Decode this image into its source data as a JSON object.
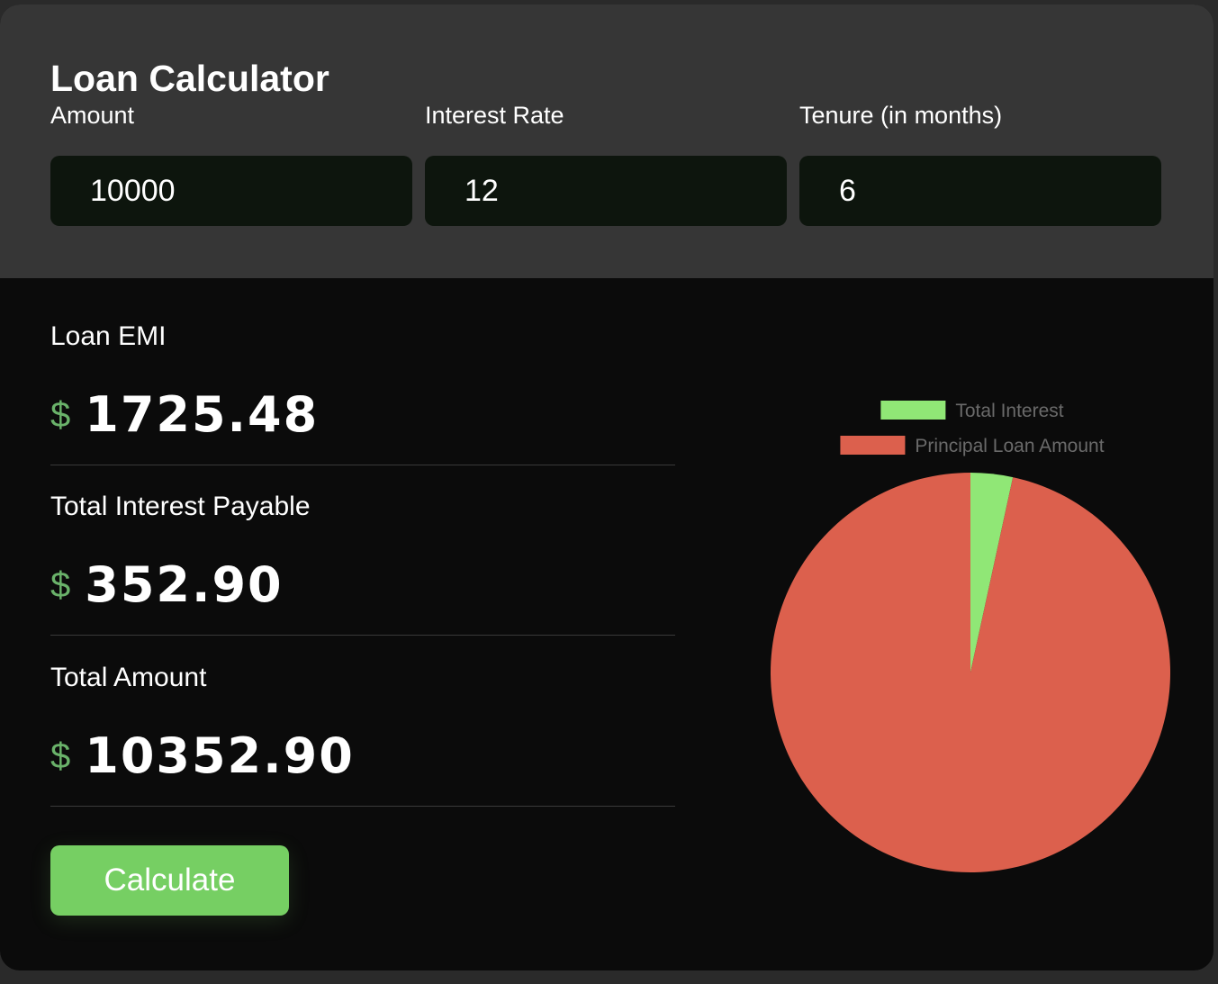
{
  "header": {
    "title": "Loan Calculator"
  },
  "inputs": {
    "amount": {
      "label": "Amount",
      "value": "10000"
    },
    "interest_rate": {
      "label": "Interest Rate",
      "value": "12"
    },
    "tenure": {
      "label": "Tenure (in months)",
      "value": "6"
    }
  },
  "results": {
    "currency_symbol": "$",
    "emi": {
      "label": "Loan EMI",
      "value": "1725.48"
    },
    "interest": {
      "label": "Total Interest Payable",
      "value": "352.90"
    },
    "total": {
      "label": "Total Amount",
      "value": "10352.90"
    }
  },
  "actions": {
    "calculate_label": "Calculate"
  },
  "colors": {
    "accent_green": "#76cf63",
    "currency_green": "#6ab26a",
    "interest_slice": "#90e776",
    "principal_slice": "#dc604d"
  },
  "chart_data": {
    "type": "pie",
    "categories": [
      "Total Interest",
      "Principal Loan Amount"
    ],
    "values": [
      352.9,
      10000
    ],
    "colors": [
      "#90e776",
      "#dc604d"
    ],
    "legend_position": "top"
  }
}
